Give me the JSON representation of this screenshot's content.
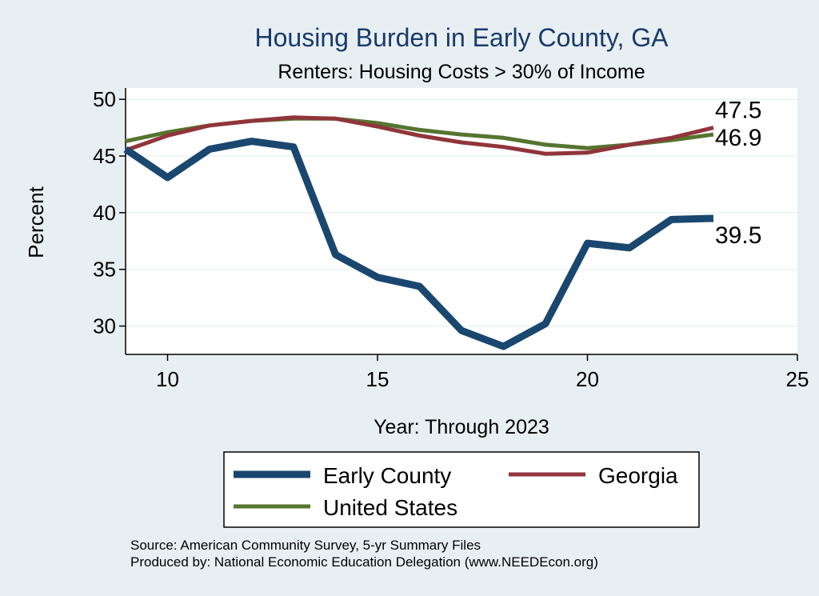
{
  "chart_data": {
    "type": "line",
    "title": "Housing Burden in Early County, GA",
    "subtitle": "Renters: Housing Costs > 30% of Income",
    "xlabel": "Year: Through 2023",
    "ylabel": "Percent",
    "xlim": [
      9,
      25
    ],
    "ylim": [
      27.5,
      51
    ],
    "xticks": [
      10,
      15,
      20,
      25
    ],
    "yticks": [
      30,
      35,
      40,
      45,
      50
    ],
    "grid": true,
    "legend_position": "bottom",
    "series": [
      {
        "name": "Early County",
        "color": "#1a476f",
        "x": [
          9,
          10,
          11,
          12,
          13,
          14,
          15,
          16,
          17,
          18,
          19,
          20,
          21,
          22,
          23
        ],
        "values": [
          45.6,
          43.1,
          45.6,
          46.3,
          45.8,
          36.3,
          34.3,
          33.5,
          29.6,
          28.2,
          30.2,
          37.3,
          36.9,
          39.4,
          39.5
        ],
        "end_label": "39.5"
      },
      {
        "name": "Georgia",
        "color": "#90353b",
        "x": [
          9,
          10,
          11,
          12,
          13,
          14,
          15,
          16,
          17,
          18,
          19,
          20,
          21,
          22,
          23
        ],
        "values": [
          45.5,
          46.8,
          47.7,
          48.1,
          48.4,
          48.3,
          47.6,
          46.8,
          46.2,
          45.8,
          45.2,
          45.3,
          46.0,
          46.6,
          47.5
        ],
        "end_label": "47.5"
      },
      {
        "name": "United States",
        "color": "#55752f",
        "x": [
          9,
          10,
          11,
          12,
          13,
          14,
          15,
          16,
          17,
          18,
          19,
          20,
          21,
          22,
          23
        ],
        "values": [
          46.3,
          47.1,
          47.7,
          48.1,
          48.3,
          48.3,
          47.9,
          47.3,
          46.9,
          46.6,
          46.0,
          45.7,
          46.0,
          46.4,
          46.9
        ],
        "end_label": "46.9"
      }
    ],
    "legend": {
      "early": "Early County",
      "georgia": "Georgia",
      "us": "United States"
    },
    "notes": [
      "Source: American Community Survey, 5-yr Summary Files",
      "Produced by: National Economic Education Delegation (www.NEEDEcon.org)"
    ]
  }
}
